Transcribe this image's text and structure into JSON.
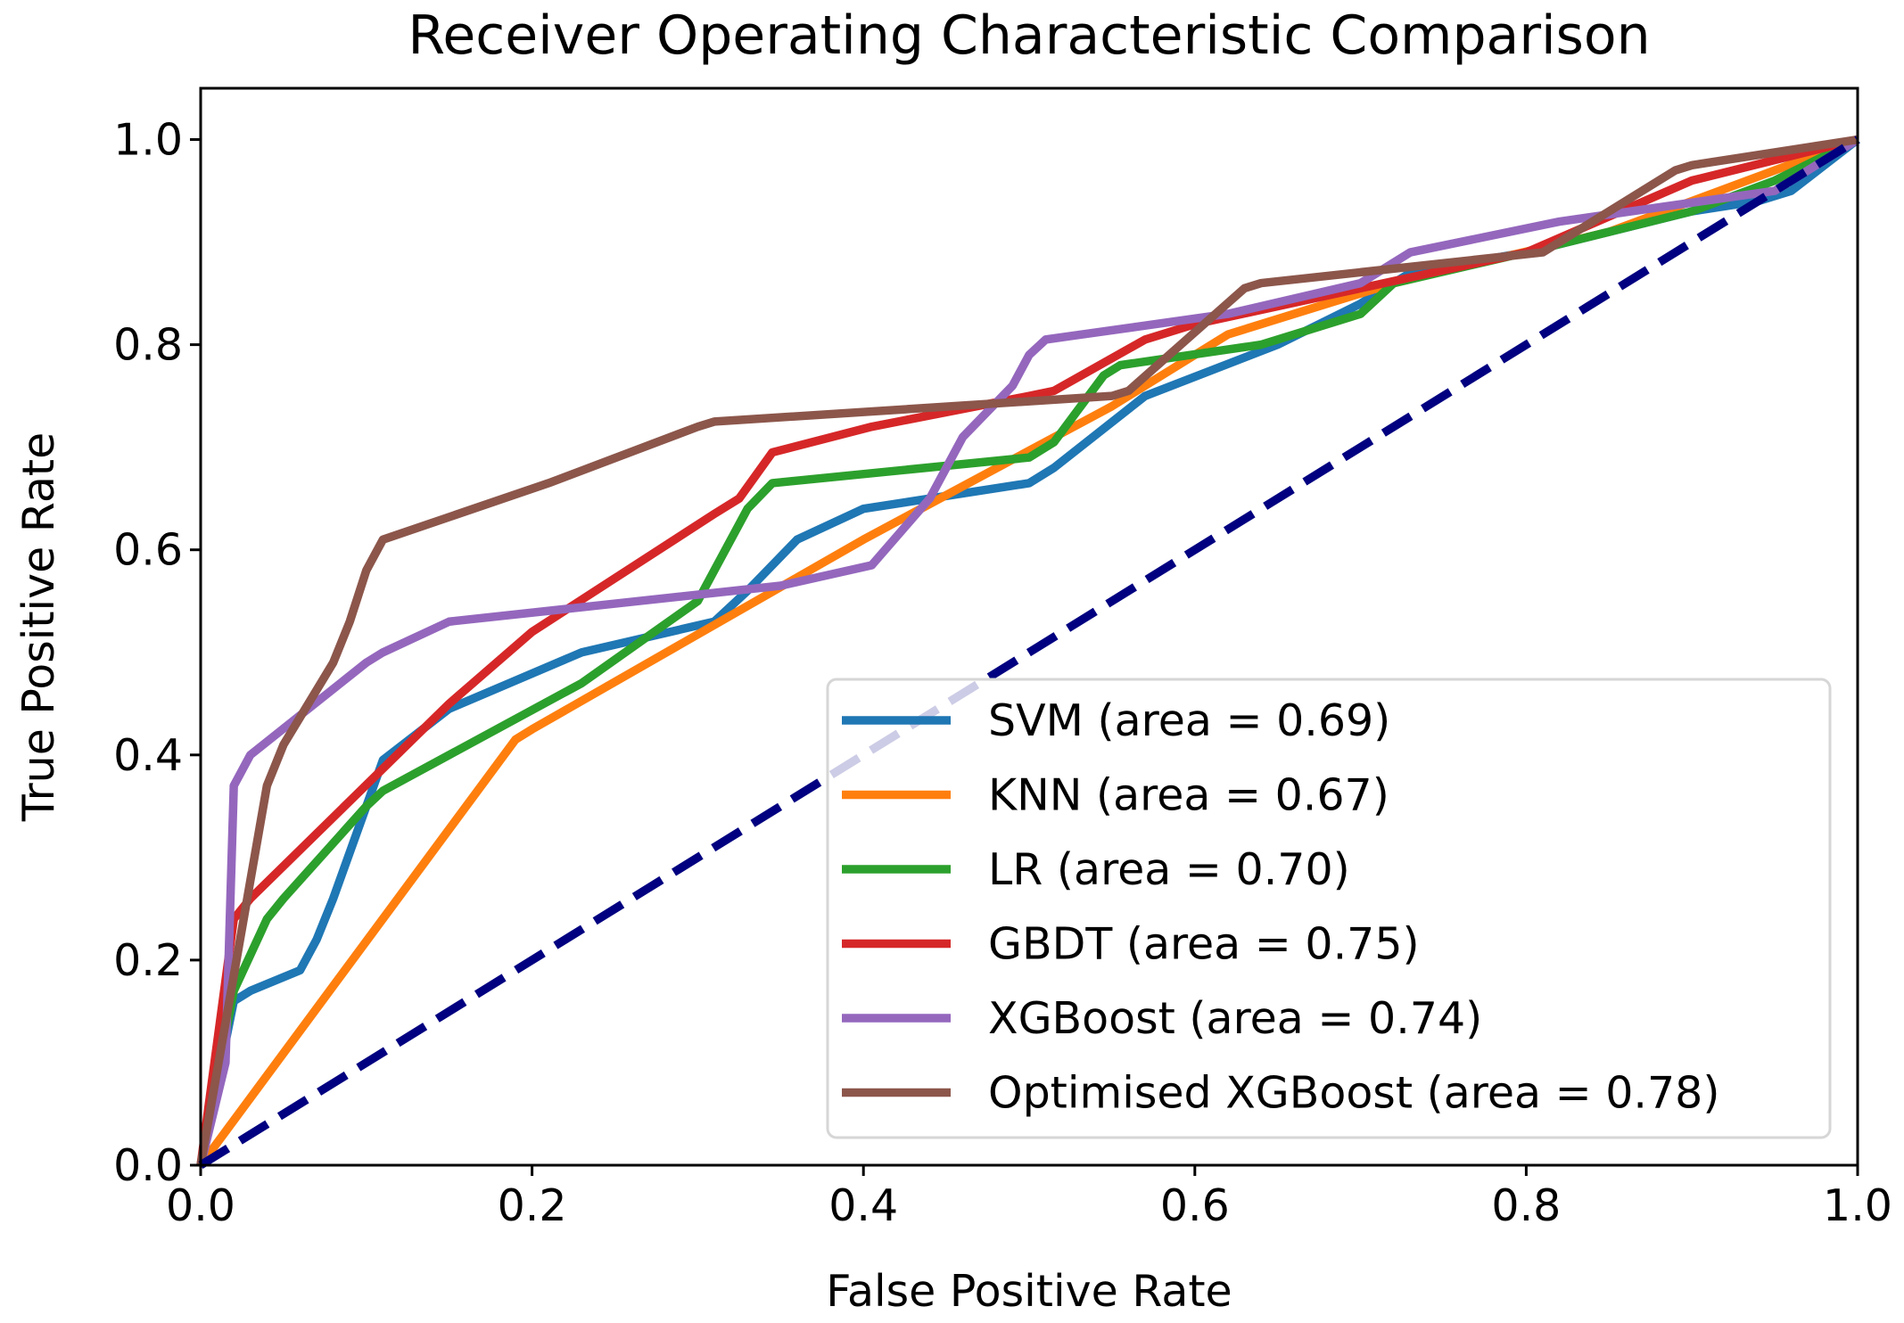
{
  "chart_data": {
    "type": "line",
    "title": "Receiver Operating Characteristic Comparison",
    "xlabel": "False Positive Rate",
    "ylabel": "True Positive Rate",
    "xlim": [
      0,
      1.0
    ],
    "ylim": [
      0,
      1.05
    ],
    "xticks": [
      "0.0",
      "0.2",
      "0.4",
      "0.6",
      "0.8",
      "1.0"
    ],
    "yticks": [
      "0.0",
      "0.2",
      "0.4",
      "0.6",
      "0.8",
      "1.0"
    ],
    "grid": false,
    "legend_position": "lower-right",
    "diagonal": {
      "color": "#000080",
      "style": "dashed",
      "points": [
        [
          0,
          0
        ],
        [
          1,
          1
        ]
      ]
    },
    "series": [
      {
        "name": "SVM (area = 0.69)",
        "color": "#1f77b4",
        "points": [
          [
            0,
            0
          ],
          [
            0.02,
            0.16
          ],
          [
            0.03,
            0.17
          ],
          [
            0.06,
            0.19
          ],
          [
            0.07,
            0.22
          ],
          [
            0.08,
            0.26
          ],
          [
            0.1,
            0.35
          ],
          [
            0.11,
            0.395
          ],
          [
            0.15,
            0.445
          ],
          [
            0.23,
            0.5
          ],
          [
            0.31,
            0.53
          ],
          [
            0.33,
            0.56
          ],
          [
            0.36,
            0.61
          ],
          [
            0.4,
            0.64
          ],
          [
            0.5,
            0.665
          ],
          [
            0.515,
            0.68
          ],
          [
            0.57,
            0.75
          ],
          [
            0.65,
            0.8
          ],
          [
            0.7,
            0.84
          ],
          [
            0.73,
            0.87
          ],
          [
            0.8,
            0.89
          ],
          [
            0.9,
            0.93
          ],
          [
            0.94,
            0.94
          ],
          [
            0.96,
            0.95
          ],
          [
            1,
            1
          ]
        ]
      },
      {
        "name": "KNN (area = 0.67)",
        "color": "#ff7f0e",
        "points": [
          [
            0,
            0
          ],
          [
            0.19,
            0.415
          ],
          [
            0.2,
            0.425
          ],
          [
            0.4,
            0.61
          ],
          [
            0.55,
            0.74
          ],
          [
            0.62,
            0.81
          ],
          [
            0.72,
            0.86
          ],
          [
            0.85,
            0.91
          ],
          [
            0.95,
            0.97
          ],
          [
            1,
            1
          ]
        ]
      },
      {
        "name": "LR (area = 0.70)",
        "color": "#2ca02c",
        "points": [
          [
            0,
            0
          ],
          [
            0.02,
            0.17
          ],
          [
            0.04,
            0.24
          ],
          [
            0.05,
            0.26
          ],
          [
            0.1,
            0.35
          ],
          [
            0.11,
            0.365
          ],
          [
            0.23,
            0.47
          ],
          [
            0.3,
            0.55
          ],
          [
            0.33,
            0.64
          ],
          [
            0.345,
            0.665
          ],
          [
            0.5,
            0.69
          ],
          [
            0.515,
            0.705
          ],
          [
            0.545,
            0.77
          ],
          [
            0.555,
            0.78
          ],
          [
            0.64,
            0.8
          ],
          [
            0.7,
            0.83
          ],
          [
            0.72,
            0.86
          ],
          [
            0.8,
            0.89
          ],
          [
            0.9,
            0.93
          ],
          [
            0.95,
            0.96
          ],
          [
            1,
            1
          ]
        ]
      },
      {
        "name": "GBDT (area = 0.75)",
        "color": "#d62728",
        "points": [
          [
            0,
            0
          ],
          [
            0.02,
            0.24
          ],
          [
            0.03,
            0.26
          ],
          [
            0.15,
            0.45
          ],
          [
            0.2,
            0.52
          ],
          [
            0.31,
            0.635
          ],
          [
            0.325,
            0.65
          ],
          [
            0.345,
            0.695
          ],
          [
            0.405,
            0.72
          ],
          [
            0.5,
            0.75
          ],
          [
            0.515,
            0.755
          ],
          [
            0.57,
            0.805
          ],
          [
            0.6,
            0.82
          ],
          [
            0.8,
            0.89
          ],
          [
            0.9,
            0.96
          ],
          [
            1,
            1
          ]
        ]
      },
      {
        "name": "XGBoost (area = 0.74)",
        "color": "#9467bd",
        "points": [
          [
            0,
            0
          ],
          [
            0.015,
            0.1
          ],
          [
            0.02,
            0.37
          ],
          [
            0.03,
            0.4
          ],
          [
            0.1,
            0.49
          ],
          [
            0.11,
            0.5
          ],
          [
            0.15,
            0.53
          ],
          [
            0.35,
            0.565
          ],
          [
            0.405,
            0.585
          ],
          [
            0.44,
            0.65
          ],
          [
            0.46,
            0.71
          ],
          [
            0.49,
            0.76
          ],
          [
            0.5,
            0.79
          ],
          [
            0.51,
            0.805
          ],
          [
            0.62,
            0.83
          ],
          [
            0.7,
            0.86
          ],
          [
            0.73,
            0.89
          ],
          [
            0.82,
            0.92
          ],
          [
            0.95,
            0.95
          ],
          [
            1,
            1
          ]
        ]
      },
      {
        "name": "Optimised XGBoost (area = 0.78)",
        "color": "#8c564b",
        "points": [
          [
            0,
            0
          ],
          [
            0.04,
            0.37
          ],
          [
            0.05,
            0.41
          ],
          [
            0.08,
            0.49
          ],
          [
            0.09,
            0.53
          ],
          [
            0.1,
            0.58
          ],
          [
            0.11,
            0.61
          ],
          [
            0.21,
            0.665
          ],
          [
            0.3,
            0.72
          ],
          [
            0.31,
            0.725
          ],
          [
            0.55,
            0.75
          ],
          [
            0.56,
            0.755
          ],
          [
            0.63,
            0.855
          ],
          [
            0.64,
            0.86
          ],
          [
            0.81,
            0.89
          ],
          [
            0.89,
            0.97
          ],
          [
            0.9,
            0.975
          ],
          [
            1,
            1
          ]
        ]
      }
    ]
  }
}
